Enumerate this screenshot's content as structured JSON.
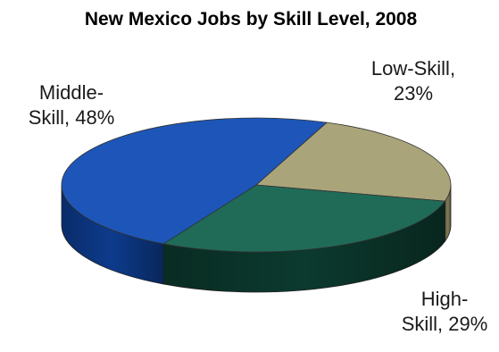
{
  "chart_data": {
    "type": "pie",
    "title": "New Mexico Jobs by Skill Level, 2008",
    "slices": [
      {
        "label_lines": [
          "Low-Skill,",
          "23%"
        ],
        "value": 23,
        "color": "#a9a47a",
        "side_color": "#7f7b57"
      },
      {
        "label_lines": [
          "High-",
          "Skill, 29%"
        ],
        "value": 29,
        "color": "#1f6b57",
        "side_color": "#0c3a2e"
      },
      {
        "label_lines": [
          "Middle-",
          "Skill, 48%"
        ],
        "value": 48,
        "color": "#1d56b8",
        "side_color": "#0d3b8c"
      }
    ],
    "style": "3d-tilted",
    "legend": "none"
  }
}
